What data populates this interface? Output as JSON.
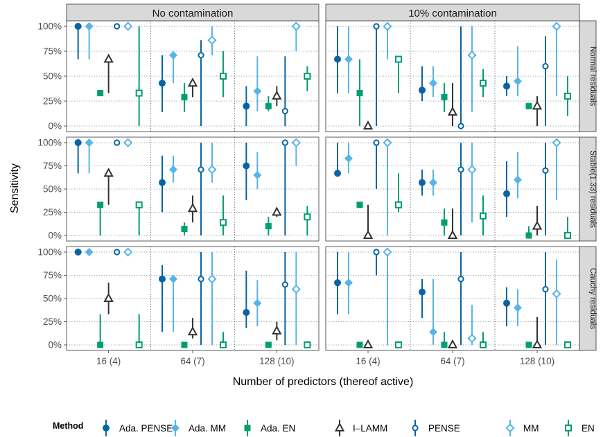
{
  "chart_data": {
    "type": "pointrange",
    "ylabel": "Sensitivity",
    "xlabel": "Number of predictors (thereof active)",
    "x_categories": [
      "16 (4)",
      "64 (7)",
      "128 (10)"
    ],
    "y_ticks": [
      "0%",
      "25%",
      "50%",
      "75%",
      "100%"
    ],
    "ylim": [
      0,
      1
    ],
    "column_facets": [
      "No contamination",
      "10% contamination"
    ],
    "row_facets": [
      "Normal residuals",
      "Stable(1.33) residuals",
      "Cauchy residuals"
    ],
    "legend": {
      "title": "Method",
      "placement": "bottom"
    },
    "methods": [
      {
        "name": "Ada. PENSE",
        "color": "#0a64a4",
        "shape": "circle-filled"
      },
      {
        "name": "Ada. MM",
        "color": "#56b4e9",
        "shape": "diamond-filled"
      },
      {
        "name": "Ada. EN",
        "color": "#009e73",
        "shape": "square-filled"
      },
      {
        "name": "I–LAMM",
        "color": "#333333",
        "shape": "triangle-open"
      },
      {
        "name": "PENSE",
        "color": "#0a64a4",
        "shape": "circle-open"
      },
      {
        "name": "MM",
        "color": "#56b4e9",
        "shape": "diamond-open"
      },
      {
        "name": "EN",
        "color": "#009e73",
        "shape": "square-open"
      }
    ],
    "data": [
      [
        [
          [
            [
              1.0,
              0.67,
              1.0
            ],
            [
              1.0,
              0.67,
              1.0
            ],
            [
              0.33,
              0.33,
              0.33
            ],
            [
              0.67,
              0.33,
              0.67
            ],
            [
              1.0,
              1.0,
              1.0
            ],
            [
              1.0,
              1.0,
              1.0
            ],
            [
              0.33,
              0.0,
              1.0
            ]
          ],
          [
            [
              0.43,
              0.14,
              0.71
            ],
            [
              0.71,
              0.43,
              0.71
            ],
            [
              0.29,
              0.14,
              0.43
            ],
            [
              0.43,
              0.29,
              0.43
            ],
            [
              0.71,
              0.0,
              0.86
            ],
            [
              0.86,
              0.71,
              1.0
            ],
            [
              0.5,
              0.29,
              0.75
            ]
          ],
          [
            [
              0.2,
              0.0,
              0.4
            ],
            [
              0.35,
              0.15,
              0.7
            ],
            [
              0.2,
              0.15,
              0.3
            ],
            [
              0.3,
              0.2,
              0.4
            ],
            [
              0.15,
              0.0,
              0.7
            ],
            [
              1.0,
              0.75,
              1.0
            ],
            [
              0.5,
              0.35,
              0.6
            ]
          ]
        ],
        [
          [
            [
              1.0,
              0.67,
              1.0
            ],
            [
              1.0,
              0.67,
              1.0
            ],
            [
              0.33,
              0.0,
              0.33
            ],
            [
              0.67,
              0.33,
              0.67
            ],
            [
              1.0,
              1.0,
              1.0
            ],
            [
              1.0,
              1.0,
              1.0
            ],
            [
              0.33,
              0.0,
              0.33
            ]
          ],
          [
            [
              0.57,
              0.25,
              0.86
            ],
            [
              0.71,
              0.57,
              0.86
            ],
            [
              0.07,
              0.0,
              0.14
            ],
            [
              0.29,
              0.14,
              0.43
            ],
            [
              0.71,
              0.0,
              1.0
            ],
            [
              0.71,
              0.57,
              1.0
            ],
            [
              0.14,
              0.0,
              0.43
            ]
          ],
          [
            [
              0.75,
              0.38,
              1.0
            ],
            [
              0.65,
              0.5,
              0.9
            ],
            [
              0.1,
              0.0,
              0.2
            ],
            [
              0.25,
              0.2,
              0.3
            ],
            [
              1.0,
              0.0,
              1.0
            ],
            [
              1.0,
              0.75,
              1.0
            ],
            [
              0.2,
              0.0,
              0.32
            ]
          ]
        ],
        [
          [
            [
              1.0,
              1.0,
              1.0
            ],
            [
              1.0,
              1.0,
              1.0
            ],
            [
              0.0,
              0.0,
              0.33
            ],
            [
              0.5,
              0.33,
              0.67
            ],
            [
              1.0,
              1.0,
              1.0
            ],
            [
              1.0,
              1.0,
              1.0
            ],
            [
              0.0,
              0.0,
              0.33
            ]
          ],
          [
            [
              0.71,
              0.14,
              0.86
            ],
            [
              0.71,
              0.14,
              0.71
            ],
            [
              0.0,
              0.0,
              0.0
            ],
            [
              0.14,
              0.07,
              0.29
            ],
            [
              0.71,
              0.0,
              1.0
            ],
            [
              0.71,
              0.0,
              1.0
            ],
            [
              0.0,
              0.0,
              0.14
            ]
          ],
          [
            [
              0.35,
              0.18,
              0.8
            ],
            [
              0.45,
              0.2,
              0.7
            ],
            [
              0.0,
              0.0,
              0.0
            ],
            [
              0.15,
              0.05,
              0.25
            ],
            [
              0.65,
              0.0,
              1.0
            ],
            [
              0.6,
              0.0,
              1.0
            ],
            [
              0.0,
              0.0,
              0.0
            ]
          ]
        ]
      ],
      [
        [
          [
            [
              0.67,
              0.33,
              1.0
            ],
            [
              0.67,
              0.33,
              1.0
            ],
            [
              0.33,
              0.0,
              0.67
            ],
            [
              0.0,
              0.0,
              0.0
            ],
            [
              1.0,
              0.0,
              1.0
            ],
            [
              1.0,
              0.67,
              1.0
            ],
            [
              0.67,
              0.33,
              0.67
            ]
          ],
          [
            [
              0.36,
              0.25,
              0.6
            ],
            [
              0.43,
              0.29,
              0.6
            ],
            [
              0.29,
              0.14,
              0.43
            ],
            [
              0.14,
              0.0,
              0.43
            ],
            [
              0.0,
              0.0,
              1.0
            ],
            [
              0.71,
              0.14,
              1.0
            ],
            [
              0.43,
              0.29,
              0.57
            ]
          ],
          [
            [
              0.4,
              0.3,
              0.5
            ],
            [
              0.45,
              0.3,
              0.8
            ],
            [
              0.2,
              0.2,
              0.2
            ],
            [
              0.2,
              0.0,
              0.3
            ],
            [
              0.6,
              0.0,
              0.9
            ],
            [
              1.0,
              0.3,
              1.0
            ],
            [
              0.3,
              0.1,
              0.5
            ]
          ]
        ],
        [
          [
            [
              0.67,
              0.67,
              1.0
            ],
            [
              0.83,
              0.67,
              1.0
            ],
            [
              0.33,
              0.33,
              0.33
            ],
            [
              0.0,
              0.0,
              0.33
            ],
            [
              1.0,
              0.5,
              1.0
            ],
            [
              1.0,
              0.0,
              1.0
            ],
            [
              0.33,
              0.25,
              0.67
            ]
          ],
          [
            [
              0.57,
              0.43,
              0.71
            ],
            [
              0.57,
              0.43,
              0.71
            ],
            [
              0.14,
              0.0,
              0.29
            ],
            [
              0.0,
              0.0,
              0.29
            ],
            [
              0.71,
              0.0,
              1.0
            ],
            [
              0.71,
              0.14,
              1.0
            ],
            [
              0.21,
              0.0,
              0.43
            ]
          ],
          [
            [
              0.45,
              0.2,
              0.8
            ],
            [
              0.6,
              0.4,
              0.9
            ],
            [
              0.0,
              0.0,
              0.1
            ],
            [
              0.1,
              0.0,
              0.32
            ],
            [
              0.7,
              0.0,
              1.0
            ],
            [
              1.0,
              0.38,
              1.0
            ],
            [
              0.0,
              0.0,
              0.2
            ]
          ]
        ],
        [
          [
            [
              0.67,
              0.33,
              1.0
            ],
            [
              0.67,
              0.33,
              1.0
            ],
            [
              0.0,
              0.0,
              0.0
            ],
            [
              0.0,
              0.0,
              0.0
            ],
            [
              1.0,
              0.75,
              1.0
            ],
            [
              1.0,
              0.0,
              1.0
            ],
            [
              0.0,
              0.0,
              0.0
            ]
          ],
          [
            [
              0.57,
              0.29,
              0.71
            ],
            [
              0.14,
              0.0,
              0.71
            ],
            [
              0.0,
              0.0,
              0.14
            ],
            [
              0.0,
              0.0,
              0.0
            ],
            [
              0.71,
              0.0,
              1.0
            ],
            [
              0.07,
              0.0,
              0.43
            ],
            [
              0.0,
              0.0,
              0.14
            ]
          ],
          [
            [
              0.45,
              0.2,
              0.62
            ],
            [
              0.4,
              0.2,
              0.6
            ],
            [
              0.0,
              0.0,
              0.0
            ],
            [
              0.0,
              0.0,
              0.3
            ],
            [
              0.6,
              0.0,
              1.0
            ],
            [
              0.55,
              0.0,
              0.92
            ],
            [
              0.0,
              0.0,
              0.0
            ]
          ]
        ]
      ]
    ]
  }
}
